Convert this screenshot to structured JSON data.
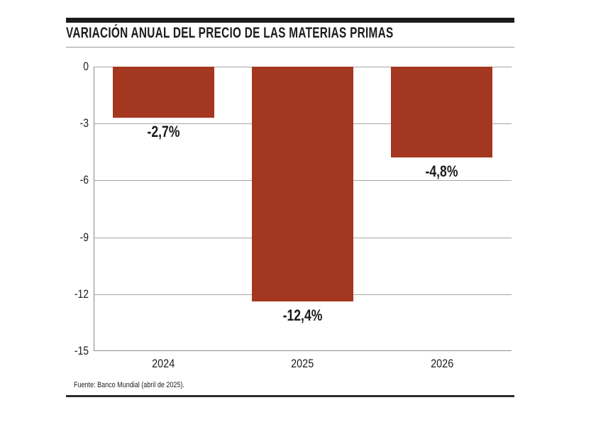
{
  "header": {
    "title": "VARIACIÓN ANUAL DEL PRECIO DE LAS MATERIAS PRIMAS"
  },
  "footer": {
    "source": "Fuente: Banco Mundial (abril de 2025)."
  },
  "colors": {
    "bar": "#A43720",
    "rule": "#1b1b1b",
    "gridline": "#a6a6a6"
  },
  "chart_data": {
    "type": "bar",
    "title": "VARIACIÓN ANUAL DEL PRECIO DE LAS MATERIAS PRIMAS",
    "categories": [
      "2024",
      "2025",
      "2026"
    ],
    "values": [
      -2.7,
      -12.4,
      -4.8
    ],
    "value_labels": [
      "-2,7%",
      "-12,4%",
      "-4,8%"
    ],
    "xlabel": "",
    "ylabel": "",
    "ylim": [
      -15,
      0
    ],
    "yticks": [
      0,
      -3,
      -6,
      -9,
      -12,
      -15
    ],
    "ytick_labels": [
      "0",
      "-3",
      "-6",
      "-9",
      "-12",
      "-15"
    ],
    "grid": true,
    "legend": null,
    "bar_color": "#A43720",
    "source": "Fuente: Banco Mundial (abril de 2025)."
  }
}
